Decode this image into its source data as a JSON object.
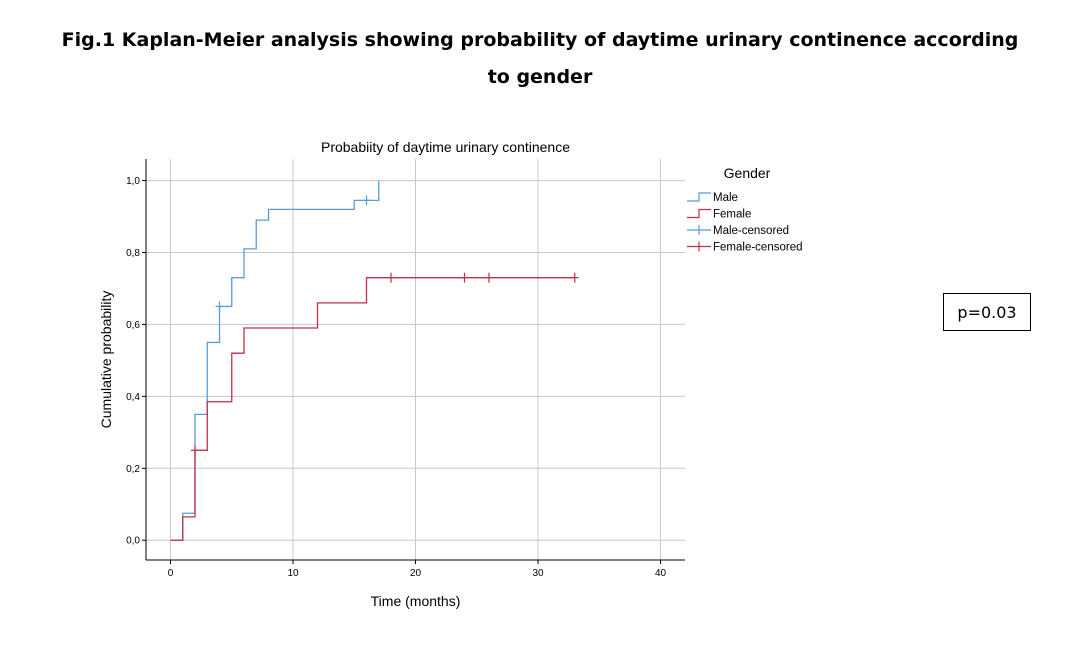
{
  "figure_title": "Fig.1 Kaplan-Meier analysis showing probability of daytime urinary continence according to gender",
  "p_value_label": "p=0.03",
  "chart_data": {
    "type": "line",
    "title": "Probabiity of daytime urinary continence",
    "xlabel": "Time (months)",
    "ylabel": "Cumulative probability",
    "xlim": [
      -2,
      42
    ],
    "ylim": [
      -0.055,
      1.06
    ],
    "x_ticks": [
      0,
      10,
      20,
      30,
      40
    ],
    "x_tick_labels": [
      "0",
      "10",
      "20",
      "30",
      "40"
    ],
    "y_ticks": [
      0,
      0.2,
      0.4,
      0.6,
      0.8,
      1.0
    ],
    "y_tick_labels": [
      "0,0",
      "0,2",
      "0,4",
      "0,6",
      "0,8",
      "1,0"
    ],
    "grid": true,
    "legend_title": "Gender",
    "legend_position": "right",
    "series": [
      {
        "name": "Male",
        "color": "#5b9bd5",
        "step_points": [
          [
            0,
            0
          ],
          [
            1,
            0.075
          ],
          [
            2,
            0.35
          ],
          [
            3,
            0.55
          ],
          [
            4,
            0.65
          ],
          [
            5,
            0.73
          ],
          [
            6,
            0.81
          ],
          [
            7,
            0.89
          ],
          [
            8,
            0.92
          ],
          [
            15,
            0.945
          ],
          [
            17,
            1.0
          ]
        ],
        "censored": [
          [
            4,
            0.65
          ],
          [
            16,
            0.945
          ]
        ]
      },
      {
        "name": "Female",
        "color": "#c0304a",
        "step_points": [
          [
            0,
            0
          ],
          [
            1,
            0.065
          ],
          [
            2,
            0.25
          ],
          [
            3,
            0.385
          ],
          [
            5,
            0.52
          ],
          [
            6,
            0.59
          ],
          [
            12,
            0.66
          ],
          [
            16,
            0.73
          ],
          [
            33,
            0.73
          ]
        ],
        "censored": [
          [
            2,
            0.25
          ],
          [
            18,
            0.73
          ],
          [
            24,
            0.73
          ],
          [
            26,
            0.73
          ],
          [
            33,
            0.73
          ]
        ]
      }
    ],
    "legend_entries": [
      {
        "label": "Male",
        "style": "step",
        "color": "#5b9bd5"
      },
      {
        "label": "Female",
        "style": "step",
        "color": "#c0304a"
      },
      {
        "label": "Male-censored",
        "style": "censor",
        "color": "#5b9bd5"
      },
      {
        "label": "Female-censored",
        "style": "censor",
        "color": "#c0304a"
      }
    ]
  }
}
